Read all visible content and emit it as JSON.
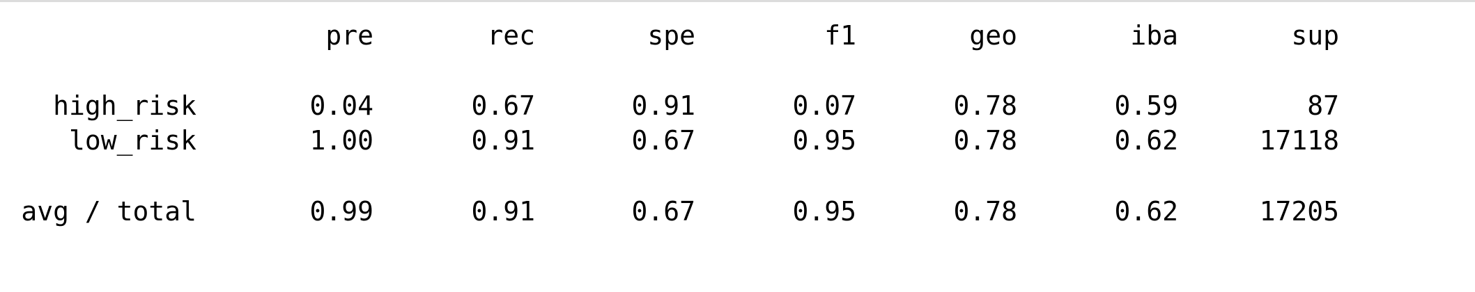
{
  "report": {
    "columns": [
      "pre",
      "rec",
      "spe",
      "f1",
      "geo",
      "iba",
      "sup"
    ],
    "rows": [
      {
        "label": "high_risk",
        "values": [
          "0.04",
          "0.67",
          "0.91",
          "0.07",
          "0.78",
          "0.59",
          "87"
        ]
      },
      {
        "label": "low_risk",
        "values": [
          "1.00",
          "0.91",
          "0.67",
          "0.95",
          "0.78",
          "0.62",
          "17118"
        ]
      }
    ],
    "summary": {
      "label": "avg / total",
      "values": [
        "0.99",
        "0.91",
        "0.67",
        "0.95",
        "0.78",
        "0.62",
        "17205"
      ]
    }
  },
  "colors": {
    "text": "#000000",
    "background": "#ffffff",
    "top_border": "#dcdcdc"
  }
}
